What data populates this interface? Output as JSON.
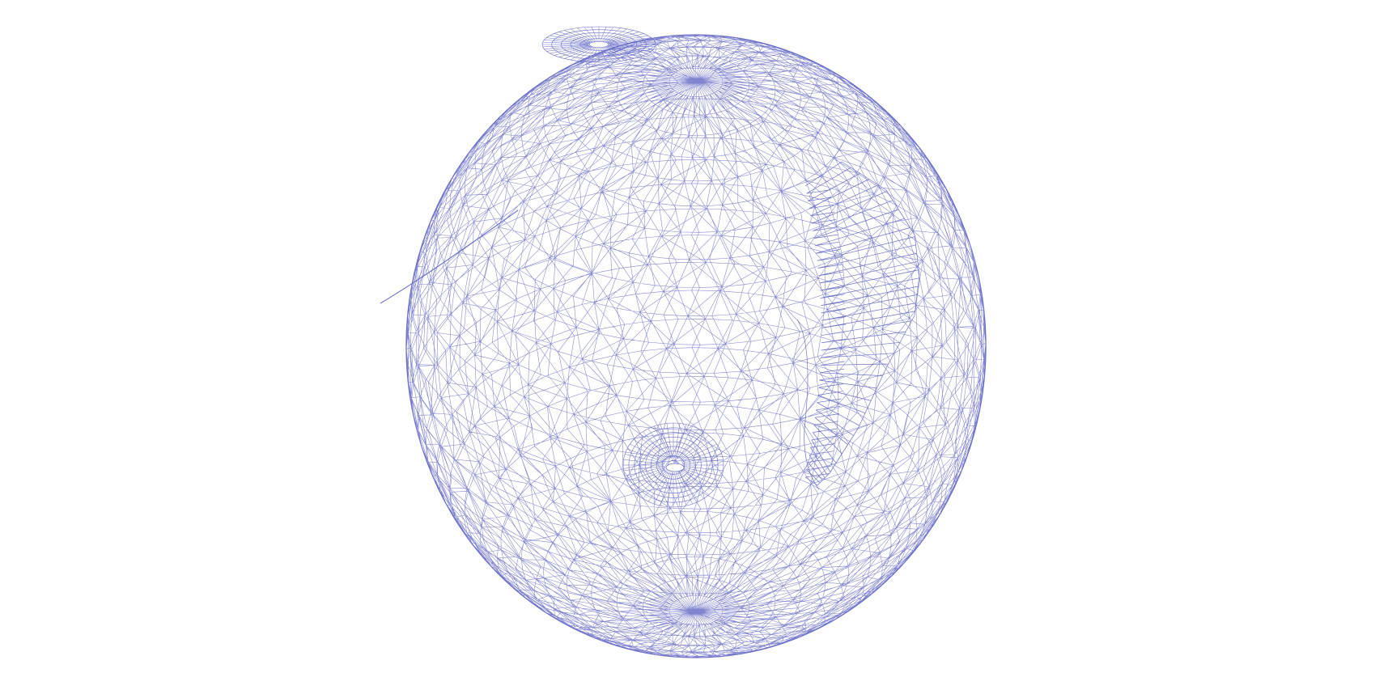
{
  "scene": {
    "background_color": "#ffffff",
    "object": {
      "kind": "3d-mesh-wireframe",
      "shape": "sphere-like head model with protruding lobe on right",
      "render_mode": "wireframe",
      "line_color": "#6b6fc7",
      "features": [
        "eye-socket-ring",
        "top-pole-ring",
        "right-side-lobe",
        "upper-left-crease"
      ]
    }
  }
}
